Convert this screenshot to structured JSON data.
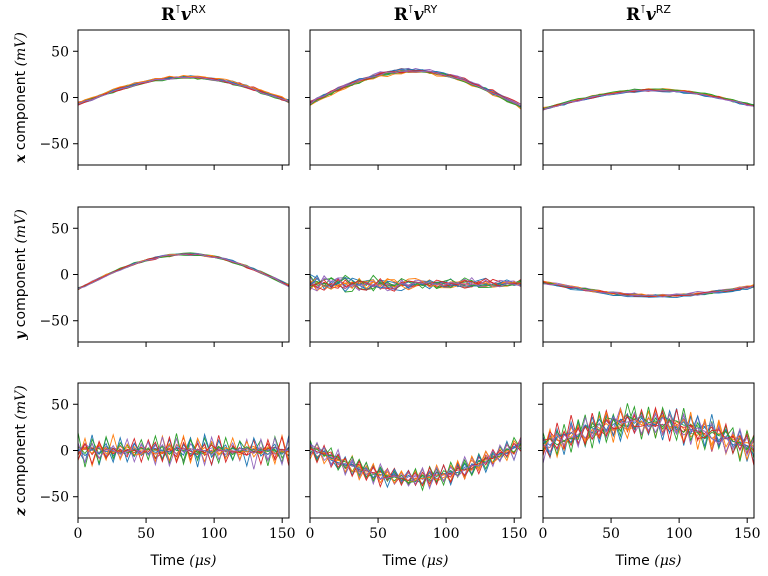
{
  "chart_data": {
    "type": "line",
    "layout": "grid-3x3",
    "column_titles": [
      {
        "base": "R",
        "sup1": "⊺",
        "vec": "v",
        "sup2": "RX"
      },
      {
        "base": "R",
        "sup1": "⊺",
        "vec": "v",
        "sup2": "RY"
      },
      {
        "base": "R",
        "sup1": "⊺",
        "vec": "v",
        "sup2": "RZ"
      }
    ],
    "row_labels": [
      {
        "vec": "x",
        "text": " component ",
        "unit": "(mV)"
      },
      {
        "vec": "y",
        "text": " component ",
        "unit": "(mV)"
      },
      {
        "vec": "z",
        "text": " component ",
        "unit": "(mV)"
      }
    ],
    "xlabel": {
      "text": "Time ",
      "unit": "(μs)"
    },
    "xlim": [
      0,
      155
    ],
    "ylim": [
      -73,
      73
    ],
    "xticks": [
      0,
      50,
      100,
      150
    ],
    "yticks": [
      -50,
      0,
      50
    ],
    "n_traces_per_panel": 15,
    "series_colors": [
      "#1f77b4",
      "#ff7f0e",
      "#2ca02c",
      "#d62728",
      "#9467bd"
    ],
    "grid": false,
    "panels": [
      {
        "row": 0,
        "col": 0,
        "pattern": "cosine",
        "center_x": 80,
        "amplitude": 26,
        "offset": -4,
        "spread": 2.5
      },
      {
        "row": 0,
        "col": 1,
        "pattern": "cosine",
        "center_x": 75,
        "amplitude": 35,
        "offset": -6,
        "spread": 3.5
      },
      {
        "row": 0,
        "col": 2,
        "pattern": "cosine",
        "center_x": 82,
        "amplitude": 18,
        "offset": -10,
        "spread": 2.0
      },
      {
        "row": 1,
        "col": 0,
        "pattern": "cosine",
        "center_x": 80,
        "amplitude": 34,
        "offset": -12,
        "spread": 2.0
      },
      {
        "row": 1,
        "col": 1,
        "pattern": "noisy-flat",
        "level": -10,
        "spread": 6.0
      },
      {
        "row": 1,
        "col": 2,
        "pattern": "cosine",
        "center_x": 85,
        "amplitude": -12,
        "offset": -11,
        "spread": 2.5
      },
      {
        "row": 2,
        "col": 0,
        "pattern": "zigzag",
        "baseline": 0,
        "zig_amplitude": 18,
        "noise": 3.0
      },
      {
        "row": 2,
        "col": 1,
        "pattern": "zigzag-cosine",
        "center_x": 75,
        "amplitude": -33,
        "offset": 3,
        "zig_amplitude": 12,
        "noise": 3.0
      },
      {
        "row": 2,
        "col": 2,
        "pattern": "zigzag-cosine",
        "center_x": 75,
        "amplitude": 25,
        "offset": 5,
        "zig_amplitude": 18,
        "noise": 6.0
      }
    ]
  }
}
